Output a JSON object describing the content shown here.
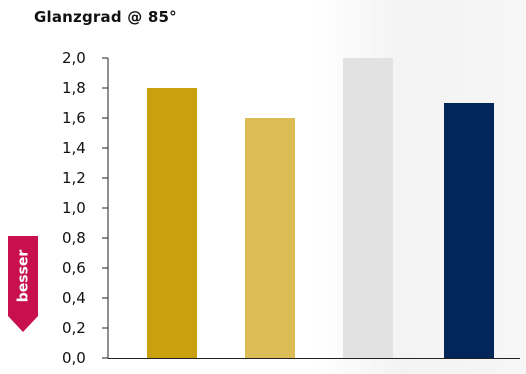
{
  "chart_data": {
    "type": "bar",
    "title": "Glanzgrad @ 85°",
    "xlabel": "",
    "ylabel": "",
    "categories": [
      "",
      "",
      "",
      ""
    ],
    "values": [
      1.8,
      1.6,
      2.0,
      1.7
    ],
    "colors": [
      "#c9a10f",
      "#dbbc55",
      "#e2e2e2",
      "#03265a"
    ],
    "ylim": [
      0,
      2.0
    ],
    "yticks": [
      "0,0",
      "0,2",
      "0,4",
      "0,6",
      "0,8",
      "1,0",
      "1,2",
      "1,4",
      "1,6",
      "1,8",
      "2,0"
    ],
    "grid": false,
    "legend": "none"
  },
  "badge": {
    "label": "besser",
    "color": "#c8104e",
    "icon": "arrow-down-icon"
  }
}
